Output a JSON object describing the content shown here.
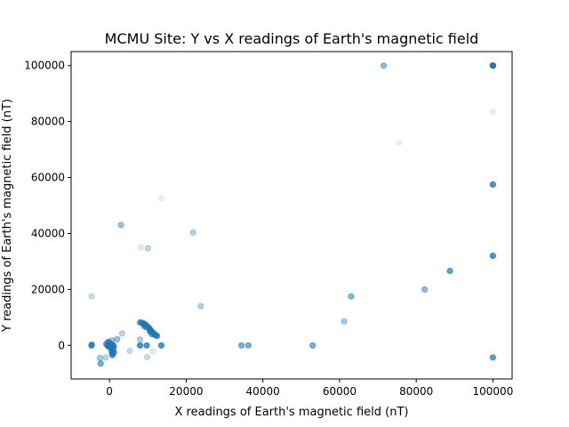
{
  "chart_data": {
    "type": "scatter",
    "title": "MCMU Site: Y vs X readings of Earth's magnetic field",
    "xlabel": "X readings of Earth's magnetic field (nT)",
    "ylabel": "Y readings of Earth's magnetic field (nT)",
    "xlim": [
      -10000,
      105000
    ],
    "ylim": [
      -12000,
      105000
    ],
    "xticks": [
      0,
      20000,
      40000,
      60000,
      80000,
      100000
    ],
    "yticks": [
      0,
      20000,
      40000,
      60000,
      80000,
      100000
    ],
    "grid": false,
    "marker_color": "#1f77b4",
    "points": [
      {
        "x": 100000,
        "y": 100000,
        "alpha": 0.8
      },
      {
        "x": 100000,
        "y": 100000,
        "alpha": 0.8
      },
      {
        "x": 100000,
        "y": 100000,
        "alpha": 0.8
      },
      {
        "x": 71500,
        "y": 100000,
        "alpha": 0.5
      },
      {
        "x": 100000,
        "y": 83500,
        "alpha": 0.1
      },
      {
        "x": 75500,
        "y": 72500,
        "alpha": 0.1
      },
      {
        "x": 100000,
        "y": 57500,
        "alpha": 0.8
      },
      {
        "x": 13500,
        "y": 52500,
        "alpha": 0.1
      },
      {
        "x": 3000,
        "y": 43000,
        "alpha": 0.45
      },
      {
        "x": 21800,
        "y": 40300,
        "alpha": 0.35
      },
      {
        "x": 8200,
        "y": 35000,
        "alpha": 0.15
      },
      {
        "x": 10000,
        "y": 34700,
        "alpha": 0.3
      },
      {
        "x": 100000,
        "y": 32000,
        "alpha": 0.8
      },
      {
        "x": 88800,
        "y": 26600,
        "alpha": 0.7
      },
      {
        "x": 82200,
        "y": 20000,
        "alpha": 0.5
      },
      {
        "x": -4700,
        "y": 17500,
        "alpha": 0.25
      },
      {
        "x": 63000,
        "y": 17500,
        "alpha": 0.55
      },
      {
        "x": 23800,
        "y": 14000,
        "alpha": 0.35
      },
      {
        "x": 61200,
        "y": 8600,
        "alpha": 0.4
      },
      {
        "x": 34400,
        "y": 0,
        "alpha": 0.6
      },
      {
        "x": 36200,
        "y": 0,
        "alpha": 0.6
      },
      {
        "x": 53000,
        "y": 0,
        "alpha": 0.6
      },
      {
        "x": 100000,
        "y": -4300,
        "alpha": 0.7
      },
      {
        "x": 8000,
        "y": 8200,
        "alpha": 0.7
      },
      {
        "x": 8400,
        "y": 8100,
        "alpha": 0.7
      },
      {
        "x": 8800,
        "y": 7900,
        "alpha": 0.7
      },
      {
        "x": 9200,
        "y": 7600,
        "alpha": 0.7
      },
      {
        "x": 9600,
        "y": 7200,
        "alpha": 0.7
      },
      {
        "x": 10000,
        "y": 6700,
        "alpha": 0.7
      },
      {
        "x": 10300,
        "y": 6200,
        "alpha": 0.7
      },
      {
        "x": 10600,
        "y": 5700,
        "alpha": 0.7
      },
      {
        "x": 10900,
        "y": 5200,
        "alpha": 0.7
      },
      {
        "x": 11200,
        "y": 4700,
        "alpha": 0.7
      },
      {
        "x": 11500,
        "y": 4300,
        "alpha": 0.7
      },
      {
        "x": 11800,
        "y": 3900,
        "alpha": 0.7
      },
      {
        "x": 12100,
        "y": 3600,
        "alpha": 0.7
      },
      {
        "x": 12400,
        "y": 3400,
        "alpha": 0.7
      },
      {
        "x": 9000,
        "y": 7000,
        "alpha": 0.6
      },
      {
        "x": 9500,
        "y": 6500,
        "alpha": 0.6
      },
      {
        "x": 10500,
        "y": 5000,
        "alpha": 0.6
      },
      {
        "x": 11000,
        "y": 4000,
        "alpha": 0.6
      },
      {
        "x": 8000,
        "y": 0,
        "alpha": 0.8
      },
      {
        "x": 9700,
        "y": 0,
        "alpha": 0.8
      },
      {
        "x": 13500,
        "y": 0,
        "alpha": 0.8
      },
      {
        "x": 8000,
        "y": 2100,
        "alpha": 0.35
      },
      {
        "x": 9800,
        "y": -4200,
        "alpha": 0.25
      },
      {
        "x": 11300,
        "y": -2200,
        "alpha": 0.15
      },
      {
        "x": 5300,
        "y": -2000,
        "alpha": 0.25
      },
      {
        "x": 3300,
        "y": 4200,
        "alpha": 0.3
      },
      {
        "x": 2000,
        "y": 2200,
        "alpha": 0.45
      },
      {
        "x": -4700,
        "y": 0,
        "alpha": 0.8
      },
      {
        "x": -4600,
        "y": 300,
        "alpha": 0.6
      },
      {
        "x": -2500,
        "y": -4500,
        "alpha": 0.4
      },
      {
        "x": -2300,
        "y": -6500,
        "alpha": 0.6
      },
      {
        "x": -1000,
        "y": -4300,
        "alpha": 0.3
      },
      {
        "x": -300,
        "y": 1200,
        "alpha": 0.8
      },
      {
        "x": -500,
        "y": 0,
        "alpha": 0.8
      },
      {
        "x": -200,
        "y": -500,
        "alpha": 0.8
      },
      {
        "x": 100,
        "y": 800,
        "alpha": 0.8
      },
      {
        "x": 300,
        "y": 300,
        "alpha": 0.8
      },
      {
        "x": 500,
        "y": -1000,
        "alpha": 0.8
      },
      {
        "x": 600,
        "y": -2000,
        "alpha": 0.8
      },
      {
        "x": 700,
        "y": -2800,
        "alpha": 0.8
      },
      {
        "x": 800,
        "y": -3400,
        "alpha": 0.8
      },
      {
        "x": 900,
        "y": -1500,
        "alpha": 0.8
      },
      {
        "x": 1000,
        "y": 0,
        "alpha": 0.8
      },
      {
        "x": 1100,
        "y": -500,
        "alpha": 0.8
      },
      {
        "x": 200,
        "y": -200,
        "alpha": 0.8
      },
      {
        "x": 400,
        "y": 500,
        "alpha": 0.8
      },
      {
        "x": 700,
        "y": 1800,
        "alpha": 0.4
      },
      {
        "x": -800,
        "y": 500,
        "alpha": 0.7
      },
      {
        "x": 1200,
        "y": -2500,
        "alpha": 0.7
      }
    ]
  }
}
